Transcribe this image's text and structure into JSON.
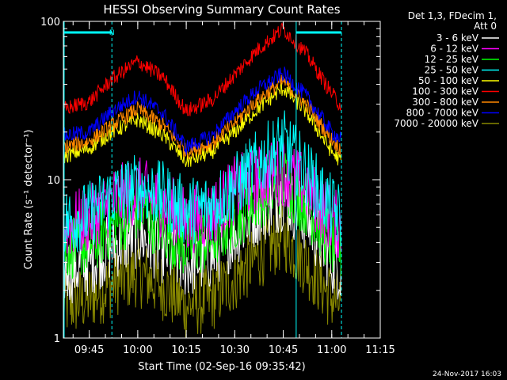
{
  "chart_data": {
    "type": "line",
    "title": "HESSI Observing Summary Count Rates",
    "xlabel": "Start Time (02-Sep-16 09:35:42)",
    "ylabel": "Count Rate (s⁻¹ detector⁻¹)",
    "y_scale": "log",
    "ylim": [
      1,
      100
    ],
    "xlim_minutes_after_0935": [
      2.0,
      100.0
    ],
    "x_ticks": [
      "09:45",
      "10:00",
      "10:15",
      "10:30",
      "10:45",
      "11:00",
      "11:15"
    ],
    "x_tick_minutes_after_0935": [
      10,
      25,
      40,
      55,
      70,
      85,
      100
    ],
    "y_ticks": [
      "1",
      "10",
      "100"
    ],
    "y_tick_values": [
      1,
      10,
      100
    ],
    "legend_header": [
      "Det 1,3, FDecim 1,",
      "Att 0"
    ],
    "legend_position": "top-right outside plot",
    "timestamp": "24-Nov-2017 16:03",
    "night_marker": "N",
    "series": [
      {
        "name": "3 - 6 keV",
        "color": "#ffffff",
        "x": [
          2,
          10,
          17,
          25,
          33,
          40,
          48,
          55,
          62,
          70,
          77,
          85,
          88
        ],
        "values": [
          2.6,
          3.0,
          3.8,
          4.5,
          3.6,
          2.9,
          3.3,
          4.6,
          6.3,
          7.9,
          5.7,
          3.1,
          2.7
        ]
      },
      {
        "name": "6 - 12 keV",
        "color": "#ff00ff",
        "x": [
          2,
          10,
          17,
          25,
          33,
          40,
          48,
          55,
          62,
          70,
          77,
          85,
          88
        ],
        "values": [
          5.0,
          5.6,
          7.3,
          8.6,
          7.0,
          5.5,
          6.1,
          8.6,
          10.0,
          11.4,
          8.9,
          5.6,
          4.9
        ]
      },
      {
        "name": "12 - 25 keV",
        "color": "#00ff00",
        "x": [
          2,
          10,
          17,
          25,
          33,
          40,
          48,
          55,
          62,
          70,
          77,
          85,
          88
        ],
        "values": [
          3.8,
          4.0,
          5.2,
          6.6,
          5.0,
          3.8,
          4.3,
          5.8,
          7.9,
          10.0,
          7.2,
          4.0,
          3.6
        ]
      },
      {
        "name": "25 - 50 keV",
        "color": "#00ffff",
        "x": [
          2,
          10,
          17,
          25,
          33,
          40,
          48,
          55,
          62,
          70,
          77,
          85,
          88
        ],
        "values": [
          5.4,
          6.0,
          7.9,
          9.0,
          7.9,
          6.3,
          6.9,
          9.0,
          12.6,
          17.0,
          11.2,
          6.5,
          5.7
        ]
      },
      {
        "name": "50 - 100 keV",
        "color": "#ffff00",
        "x": [
          2,
          10,
          17,
          25,
          33,
          40,
          48,
          55,
          62,
          70,
          77,
          85,
          88
        ],
        "values": [
          14.0,
          15.8,
          20.0,
          24.0,
          19.0,
          13.0,
          15.0,
          20.0,
          28.0,
          38.0,
          27.0,
          15.0,
          13.0
        ]
      },
      {
        "name": "100 - 300 keV",
        "color": "#ff0000",
        "x": [
          2,
          10,
          17,
          25,
          33,
          40,
          48,
          55,
          62,
          70,
          77,
          85,
          88
        ],
        "values": [
          28.0,
          31.0,
          43.0,
          56.0,
          44.0,
          27.0,
          32.0,
          46.0,
          66.0,
          90.0,
          63.0,
          35.0,
          29.0
        ]
      },
      {
        "name": "300 - 800 keV",
        "color": "#ff8800",
        "x": [
          2,
          10,
          17,
          25,
          33,
          40,
          48,
          55,
          62,
          70,
          77,
          85,
          88
        ],
        "values": [
          16.0,
          17.5,
          22.0,
          28.0,
          22.0,
          15.0,
          17.0,
          23.0,
          32.0,
          42.0,
          30.0,
          18.0,
          15.5
        ]
      },
      {
        "name": "800 - 7000 keV",
        "color": "#0000ff",
        "x": [
          2,
          10,
          17,
          25,
          33,
          40,
          48,
          55,
          62,
          70,
          77,
          85,
          88
        ],
        "values": [
          19.0,
          20.0,
          27.0,
          34.0,
          26.0,
          16.0,
          19.0,
          27.0,
          37.0,
          47.0,
          34.0,
          20.0,
          18.0
        ]
      },
      {
        "name": "7000 - 20000 keV",
        "color": "#888800",
        "x": [
          2,
          10,
          17,
          25,
          33,
          40,
          48,
          55,
          62,
          70,
          77,
          85,
          88
        ],
        "values": [
          1.6,
          1.8,
          2.2,
          2.6,
          2.1,
          1.6,
          1.8,
          2.4,
          3.3,
          4.4,
          3.0,
          1.8,
          1.6
        ]
      }
    ]
  },
  "markers": {
    "night_intervals_minutes_after_0935": [
      [
        2,
        17
      ],
      [
        74,
        88
      ]
    ],
    "event_line_minute": 74,
    "dashed_lines_minutes": [
      17,
      88
    ]
  }
}
